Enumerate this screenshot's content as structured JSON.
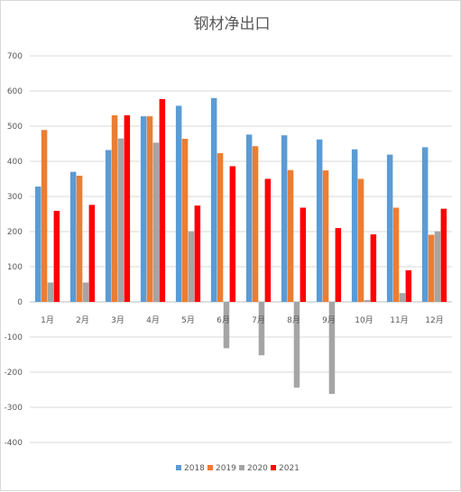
{
  "chart_data": {
    "type": "bar",
    "title": "钢材净出口",
    "xlabel": "",
    "ylabel": "",
    "ylim": [
      -400,
      700
    ],
    "yticks": [
      700,
      600,
      500,
      400,
      300,
      200,
      100,
      0,
      -100,
      -200,
      -300,
      -400
    ],
    "grid": true,
    "legend_position": "bottom",
    "categories": [
      "1月",
      "2月",
      "3月",
      "4月",
      "5月",
      "6月",
      "7月",
      "8月",
      "9月",
      "10月",
      "11月",
      "12月"
    ],
    "series": [
      {
        "name": "2018",
        "color": "#5b9bd5",
        "values": [
          328,
          370,
          432,
          528,
          558,
          580,
          476,
          474,
          462,
          434,
          419,
          440
        ]
      },
      {
        "name": "2019",
        "color": "#ed7d31",
        "values": [
          489,
          359,
          531,
          528,
          464,
          423,
          443,
          375,
          374,
          350,
          268,
          191
        ]
      },
      {
        "name": "2020",
        "color": "#a5a5a5",
        "values": [
          55,
          55,
          465,
          453,
          201,
          -132,
          -152,
          -244,
          -262,
          5,
          25,
          201
        ]
      },
      {
        "name": "2021",
        "color": "#ff0000",
        "values": [
          259,
          276,
          531,
          577,
          274,
          386,
          350,
          268,
          210,
          192,
          90,
          265
        ]
      }
    ]
  }
}
